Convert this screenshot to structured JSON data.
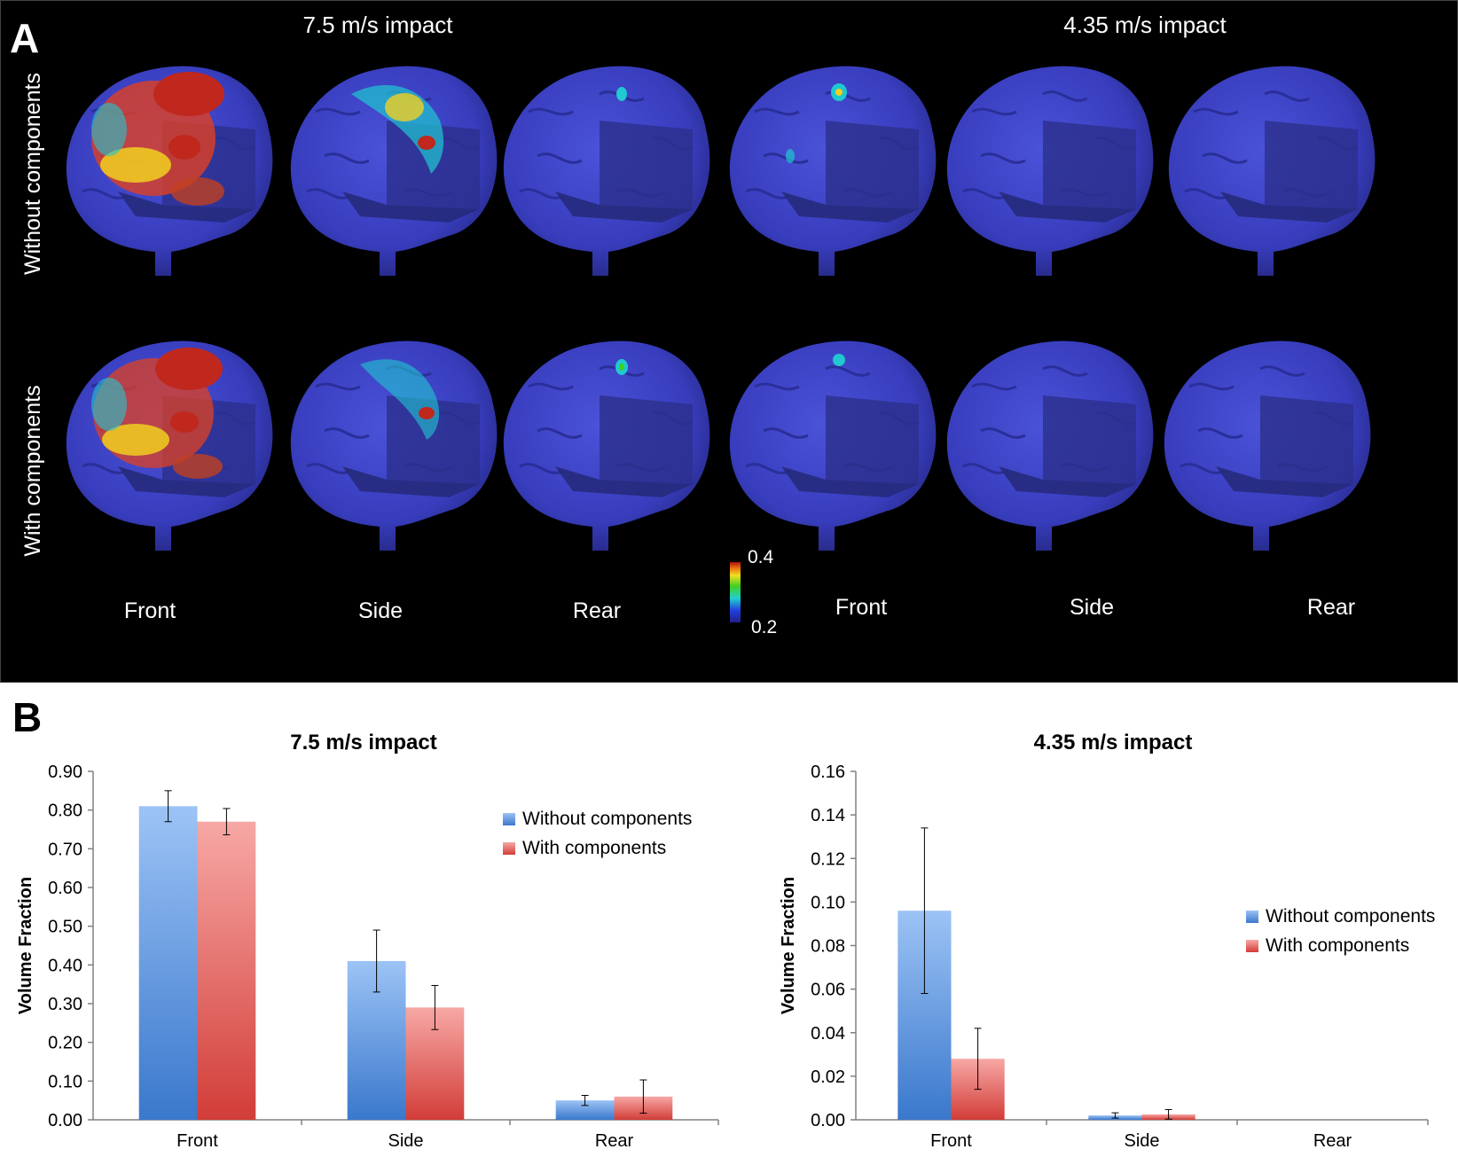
{
  "panel_a": {
    "label": "A",
    "speed_titles": [
      "7.5 m/s impact",
      "4.35 m/s impact"
    ],
    "row_labels": [
      "Without components",
      "With components"
    ],
    "view_labels": [
      "Front",
      "Side",
      "Rear",
      "Front",
      "Side",
      "Rear"
    ],
    "colorbar": {
      "max": "0.4",
      "min": "0.2"
    },
    "colors": {
      "background": "#000000",
      "brain": "#3a3fc2",
      "hot": "#c0281e",
      "warm": "#f0d020",
      "cool": "#20c8d0"
    }
  },
  "panel_b": {
    "label": "B"
  },
  "chart_data": [
    {
      "type": "bar",
      "title": "7.5 m/s impact",
      "xlabel": "",
      "ylabel": "Volume Fraction",
      "categories": [
        "Front",
        "Side",
        "Rear"
      ],
      "ylim": [
        0,
        0.9
      ],
      "yticks": [
        "0.00",
        "0.10",
        "0.20",
        "0.30",
        "0.40",
        "0.50",
        "0.60",
        "0.70",
        "0.80",
        "0.90"
      ],
      "series": [
        {
          "name": "Without components",
          "values": [
            0.81,
            0.41,
            0.05
          ],
          "errors": [
            0.04,
            0.08,
            0.013
          ],
          "color": "#5b9bd5"
        },
        {
          "name": "With components",
          "values": [
            0.77,
            0.29,
            0.06
          ],
          "errors": [
            0.034,
            0.057,
            0.043
          ],
          "color": "#e8635f"
        }
      ],
      "legend": "right"
    },
    {
      "type": "bar",
      "title": "4.35 m/s impact",
      "xlabel": "",
      "ylabel": "Volume Fraction",
      "categories": [
        "Front",
        "Side",
        "Rear"
      ],
      "ylim": [
        0,
        0.16
      ],
      "yticks": [
        "0.00",
        "0.02",
        "0.04",
        "0.06",
        "0.08",
        "0.10",
        "0.12",
        "0.14",
        "0.16"
      ],
      "series": [
        {
          "name": "Without components",
          "values": [
            0.096,
            0.002,
            0.0
          ],
          "errors": [
            0.038,
            0.0012,
            0.0
          ],
          "color": "#5b9bd5"
        },
        {
          "name": "With components",
          "values": [
            0.028,
            0.0025,
            0.0
          ],
          "errors": [
            0.014,
            0.0022,
            0.0
          ],
          "color": "#e8635f"
        }
      ],
      "legend": "right"
    }
  ]
}
